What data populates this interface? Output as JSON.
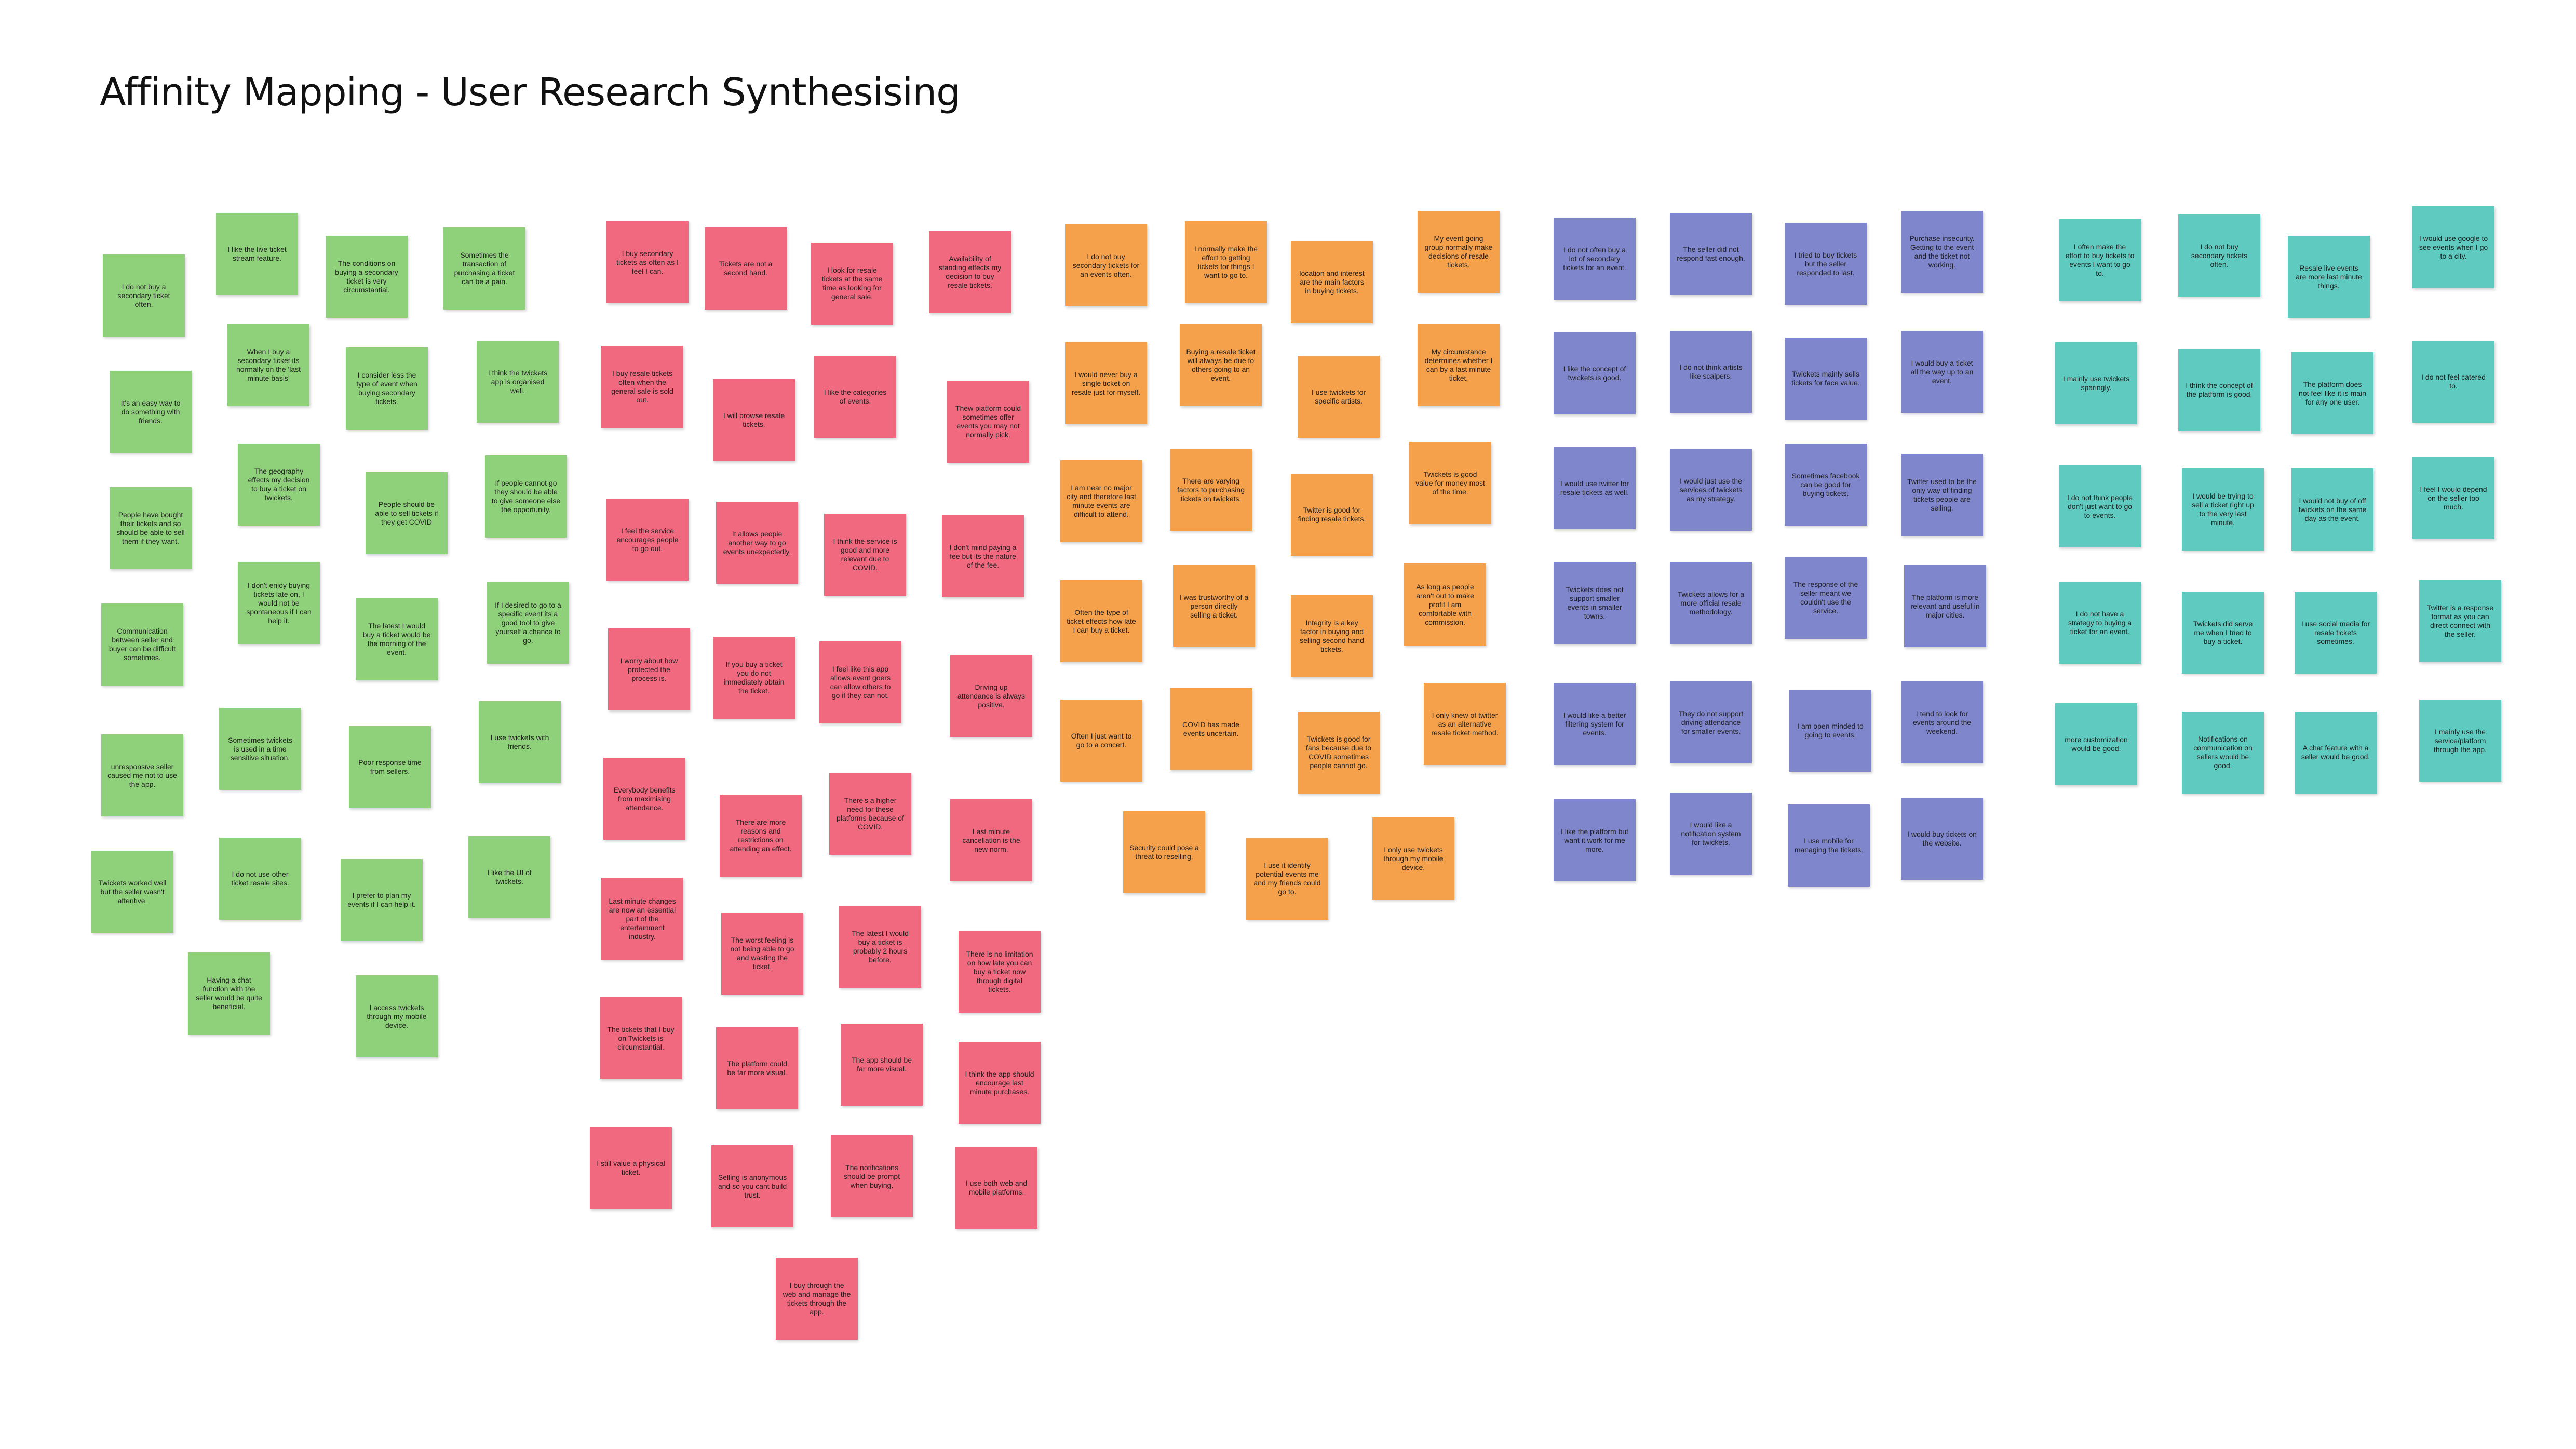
{
  "title": "Affinity Mapping - User Research Synthesising",
  "clusters": [
    [
      "I do not buy a secondary ticket often.",
      "It's an easy way to do something with friends.",
      "People have bought their tickets and so should be able to sell them if they want.",
      "Communication between seller and buyer can be difficult sometimes.",
      "unresponsive seller caused me not to use the app.",
      "Twickets worked well but the seller wasn't attentive.",
      "I like the live ticket stream feature.",
      "When I buy a secondary ticket its normally on the 'last minute basis'",
      "The geography effects my decision to buy a ticket on twickets.",
      "I don't enjoy buying tickets late on, I would not be spontaneous if I can help it.",
      "Sometimes twickets is used in a time sensitive situation.",
      "I do not use other ticket resale sites.",
      "Having a chat function with the seller would be quite beneficial.",
      "The conditions on buying a secondary ticket is very circumstantial.",
      "I consider less the type of event when buying secondary tickets.",
      "People should be able to sell tickets if they get COVID",
      "The latest I would buy a ticket would be the morning of the event.",
      "Poor response time from sellers.",
      "I prefer to plan my events if I can help it.",
      "I access twickets through my mobile device.",
      "Sometimes the transaction of purchasing a ticket can be a pain.",
      "I think the twickets app is organised well.",
      "If people cannot go they should be able to give someone else the opportunity.",
      "If I desired to go to a specific event its a good tool to give yourself a chance to go.",
      "I use twickets with friends.",
      "I like the UI of twickets."
    ],
    [
      "I buy secondary tickets as often as I feel I can.",
      "I buy resale tickets often when the general sale is sold out.",
      "I feel the service encourages people to go out.",
      "I worry about how protected the process is.",
      "Everybody benefits from maximising attendance.",
      "Last minute changes are now an essential part of the entertainment industry.",
      "The tickets that I buy on Twickets is circumstantial.",
      "I still value a physical ticket.",
      "Tickets are not a second hand.",
      "I will browse resale tickets.",
      "It allows people another way to go events unexpectedly.",
      "If you buy a ticket you do not immediately obtain the ticket.",
      "There are more reasons and restrictions on attending an effect.",
      "The worst feeling is not being able to go and wasting the ticket.",
      "The platform could be far more visual.",
      "Selling is anonymous and so you cant build trust.",
      "I buy through the web and manage the tickets through the app.",
      "I look for resale tickets at the same time as looking for general sale.",
      "I like the categories of events.",
      "I think the service is good and more relevant due to COVID.",
      "I feel like this app allows event goers can allow others to go if they can not.",
      "There's a higher need for these platforms because of COVID.",
      "The latest I would buy a ticket is probably 2 hours before.",
      "The app should be far more visual.",
      "The notifications should be prompt when buying.",
      "Availability of standing effects my decision to buy resale tickets.",
      "Thew platform could sometimes offer events you may not normally pick.",
      "I don't mind paying a fee but its the nature of the fee.",
      "Driving up attendance is always positive.",
      "Last minute cancellation is the new norm.",
      "There is no limitation on how late you can buy a ticket now through digital tickets.",
      "I think the app should encourage last minute purchases.",
      "I use both web and mobile platforms."
    ],
    [
      "I do not buy secondary tickets for an events often.",
      "I would never buy a single ticket on resale just for myself.",
      "I am near no major city and therefore last minute events are difficult to attend.",
      "Often the type of ticket effects how late I can buy a ticket.",
      "Often I just want to go to a concert.",
      "Security could pose a threat to reselling.",
      "I normally make the effort to getting tickets for things I want to go to.",
      "Buying a resale ticket will always be due to others going to an event.",
      "There are varying factors to purchasing tickets on twickets.",
      "I was trustworthy of a person directly selling a ticket.",
      "COVID has made events uncertain.",
      "I use it identify potential events me and my friends could go to.",
      "location and interest are the main factors in buying tickets.",
      "I use twickets for specific artists.",
      "Twitter is good for finding resale tickets.",
      "Integrity is a key factor in buying and selling second hand tickets.",
      "Twickets is good for fans because due to COVID sometimes people cannot go.",
      "I only use twickets through my mobile device.",
      "My event going group normally make decisions of resale tickets.",
      "My circumstance determines whether I can by a last minute ticket.",
      "Twickets is good value for money most of the time.",
      "As long as people aren't out to make profit I am comfortable with commission.",
      "I only knew of twitter as an alternative resale ticket method."
    ],
    [
      "I do not often buy a lot of secondary tickets for an event.",
      "I like the concept of twickets is good.",
      "I would use twitter for resale tickets as well.",
      "Twickets does not support smaller events in smaller towns.",
      "I would like a better filtering system for events.",
      "I like the platform but want it work for me more.",
      "The seller did not respond fast enough.",
      "I do not think artists like scalpers.",
      "I would just use the services of twickets as my strategy.",
      "Twickets allows for a more official resale methodology.",
      "They do not support driving attendance for smaller events.",
      "I would like a notification system for twickets.",
      "I tried to buy tickets but the seller responded to last.",
      "Twickets mainly sells tickets for face value.",
      "Sometimes facebook can be good for buying tickets.",
      "The response of the seller meant we couldn't use the service.",
      "I am open minded to going to events.",
      "I use mobile for managing the tickets.",
      "Purchase insecurity. Getting to the event and the ticket not working.",
      "I would buy a ticket all the way up to an event.",
      "Twitter used to be the only way of finding tickets people are selling.",
      "The platform is more relevant and useful in major cities.",
      "I tend to look for events around the weekend.",
      "I would buy tickets on the website."
    ],
    [
      "I often make the effort to buy tickets to events I want to go to.",
      "I mainly use twickets sparingly.",
      "I do not think people don't just want to go to events.",
      "I do not have a strategy to buying a ticket for an event.",
      "more customization would be good.",
      "I do not buy secondary tickets often.",
      "I think the concept of the platform is good.",
      "I would be trying to sell a ticket right up to the very last minute.",
      "Twickets did serve me when I tried to buy a ticket.",
      "Notifications on communication on sellers would be good.",
      "Resale live events are more last minute things.",
      "The platform does not feel like it is main for any one user.",
      "I would not buy of off twickets on the same day as the event.",
      "I use social media for resale tickets sometimes.",
      "A chat feature with a seller would be good.",
      "I would use google to see events when I go to a city.",
      "I do not feel catered to.",
      "I feel I would depend on the seller too much.",
      "Twitter is a response format as you can direct connect with the seller.",
      "I mainly use the service/platform through the app."
    ]
  ]
}
